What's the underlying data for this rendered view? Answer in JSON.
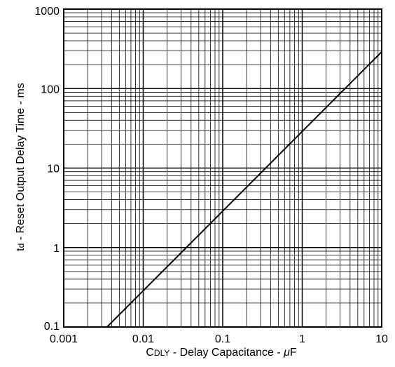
{
  "chart_data": {
    "type": "line",
    "x_scale": "log",
    "y_scale": "log",
    "xlim": [
      0.001,
      10
    ],
    "ylim": [
      0.1,
      1000
    ],
    "grid": true,
    "x_ticks": [
      {
        "value": 0.001,
        "label": "0.001"
      },
      {
        "value": 0.01,
        "label": "0.01"
      },
      {
        "value": 0.1,
        "label": "0.1"
      },
      {
        "value": 1,
        "label": "1"
      },
      {
        "value": 10,
        "label": "10"
      }
    ],
    "y_ticks": [
      {
        "value": 0.1,
        "label": "0.1"
      },
      {
        "value": 1,
        "label": "1"
      },
      {
        "value": 10,
        "label": "10"
      },
      {
        "value": 100,
        "label": "100"
      },
      {
        "value": 1000,
        "label": "1000"
      }
    ],
    "xlabel": {
      "prefix": "C",
      "subscript": "DLY",
      "rest": " - Delay Capacitance - ",
      "unit_symbol": "μ",
      "unit": "F"
    },
    "ylabel": {
      "prefix": "t",
      "subscript": "d",
      "rest": " - Reset Output Delay Time - ms"
    },
    "series": [
      {
        "color": "#000000",
        "points": [
          {
            "x": 0.0035,
            "y": 0.1
          },
          {
            "x": 10,
            "y": 290
          }
        ]
      }
    ]
  }
}
